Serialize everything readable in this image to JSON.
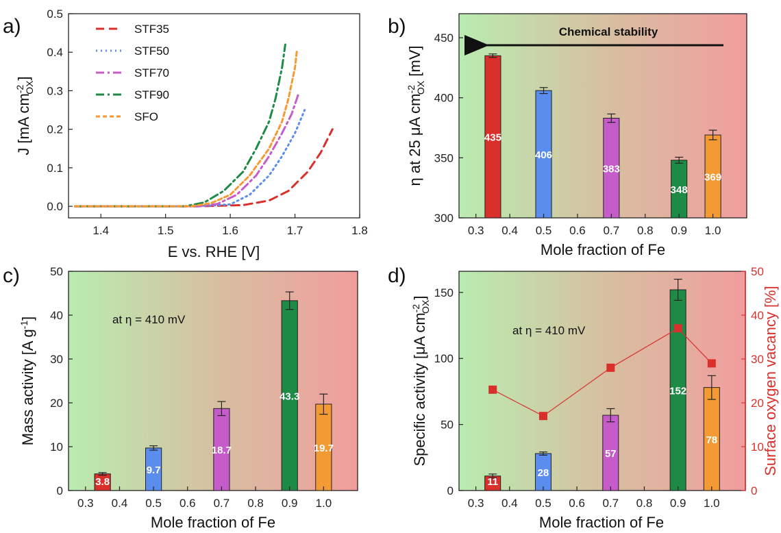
{
  "chart_data": [
    {
      "panel": "a)",
      "type": "line",
      "xlabel": "E vs. RHE [V]",
      "ylabel": "J [mA cm",
      "ylabel_sup": "-2",
      "ylabel_sub": "OX",
      "ylabel_end": "]",
      "xlim": [
        1.35,
        1.8
      ],
      "ylim": [
        -0.03,
        0.5
      ],
      "xticks": [
        1.4,
        1.5,
        1.6,
        1.7,
        1.8
      ],
      "yticks": [
        0.0,
        0.1,
        0.2,
        0.3,
        0.4,
        0.5
      ],
      "grid": false,
      "legend_position": "top-left",
      "series": [
        {
          "name": "STF35",
          "color": "#d9302c",
          "dash": "dash",
          "x": [
            1.36,
            1.45,
            1.55,
            1.62,
            1.66,
            1.69,
            1.72,
            1.74,
            1.758
          ],
          "y": [
            0,
            0,
            0,
            0.003,
            0.015,
            0.04,
            0.09,
            0.14,
            0.2
          ]
        },
        {
          "name": "STF50",
          "color": "#5b8def",
          "dash": "dot",
          "x": [
            1.36,
            1.45,
            1.55,
            1.6,
            1.63,
            1.66,
            1.68,
            1.7,
            1.715
          ],
          "y": [
            0,
            0,
            0,
            0.005,
            0.03,
            0.08,
            0.13,
            0.19,
            0.25
          ]
        },
        {
          "name": "STF70",
          "color": "#c55cc9",
          "dash": "dashdot",
          "x": [
            1.36,
            1.45,
            1.55,
            1.58,
            1.61,
            1.64,
            1.66,
            1.68,
            1.695,
            1.705
          ],
          "y": [
            0,
            0,
            0,
            0.006,
            0.03,
            0.08,
            0.13,
            0.19,
            0.24,
            0.29
          ]
        },
        {
          "name": "STF90",
          "color": "#1d8a45",
          "dash": "dashdot",
          "x": [
            1.36,
            1.45,
            1.53,
            1.56,
            1.59,
            1.62,
            1.64,
            1.66,
            1.67,
            1.68,
            1.685
          ],
          "y": [
            0,
            0,
            0,
            0.01,
            0.04,
            0.09,
            0.15,
            0.22,
            0.28,
            0.36,
            0.42
          ]
        },
        {
          "name": "SFO",
          "color": "#f39a34",
          "dash": "shortdash",
          "x": [
            1.36,
            1.45,
            1.54,
            1.57,
            1.6,
            1.63,
            1.66,
            1.68,
            1.69,
            1.7,
            1.703
          ],
          "y": [
            0,
            0,
            0,
            0.008,
            0.03,
            0.08,
            0.15,
            0.22,
            0.28,
            0.36,
            0.405
          ]
        }
      ]
    },
    {
      "panel": "b)",
      "type": "bar",
      "xlabel": "Mole fraction of Fe",
      "ylabel_pre": "η at 25 μA cm",
      "ylabel_sup": "-2",
      "ylabel_sub": "OX",
      "ylabel_end": " [mV]",
      "xlim": [
        0.25,
        1.1
      ],
      "ylim": [
        300,
        470
      ],
      "xticks": [
        0.3,
        0.4,
        0.5,
        0.6,
        0.7,
        0.8,
        0.9,
        1.0
      ],
      "yticks": [
        300,
        350,
        400,
        450
      ],
      "arrow_label": "Chemical stability",
      "x": [
        0.35,
        0.5,
        0.7,
        0.9,
        1.0
      ],
      "values": [
        435,
        406,
        383,
        348,
        369
      ],
      "errors": [
        1.5,
        2.5,
        3.5,
        2.5,
        4
      ],
      "labels": [
        "435",
        "406",
        "383",
        "348",
        "369"
      ],
      "colors": [
        "#d9302c",
        "#5b8def",
        "#c55cc9",
        "#1d8a45",
        "#f39a34"
      ]
    },
    {
      "panel": "c)",
      "type": "bar",
      "xlabel": "Mole fraction of Fe",
      "ylabel": "Mass activity [A g",
      "ylabel_sup": "-1",
      "ylabel_end": "]",
      "xlim": [
        0.25,
        1.1
      ],
      "ylim": [
        0,
        50
      ],
      "xticks": [
        0.3,
        0.4,
        0.5,
        0.6,
        0.7,
        0.8,
        0.9,
        1.0
      ],
      "yticks": [
        0,
        10,
        20,
        30,
        40,
        50
      ],
      "annotation": "at η = 410 mV",
      "x": [
        0.35,
        0.5,
        0.7,
        0.9,
        1.0
      ],
      "values": [
        3.8,
        9.7,
        18.7,
        43.3,
        19.7
      ],
      "errors": [
        0.3,
        0.5,
        1.6,
        2.0,
        2.3
      ],
      "labels": [
        "3.8",
        "9.7",
        "18.7",
        "43.3",
        "19.7"
      ],
      "colors": [
        "#d9302c",
        "#5b8def",
        "#c55cc9",
        "#1d8a45",
        "#f39a34"
      ]
    },
    {
      "panel": "d)",
      "type": "bar",
      "xlabel": "Mole fraction of Fe",
      "ylabel_pre": "Specific activity [μA cm",
      "ylabel_sup": "-2",
      "ylabel_sub": "OX",
      "ylabel_end": "]",
      "ylabel2": "Surface oxygen vacancy [%]",
      "xlim": [
        0.25,
        1.1
      ],
      "ylim": [
        0,
        166
      ],
      "ylim2": [
        0,
        50
      ],
      "xticks": [
        0.3,
        0.4,
        0.5,
        0.6,
        0.7,
        0.8,
        0.9,
        1.0
      ],
      "yticks": [
        0,
        50,
        100,
        150
      ],
      "yticks2": [
        0,
        10,
        20,
        30,
        40,
        50
      ],
      "annotation": "at η = 410 mV",
      "x": [
        0.35,
        0.5,
        0.7,
        0.9,
        1.0
      ],
      "values": [
        11,
        28,
        57,
        152,
        78
      ],
      "errors": [
        1.5,
        1.2,
        5,
        8,
        9
      ],
      "labels": [
        "11",
        "28",
        "57",
        "152",
        "78"
      ],
      "colors": [
        "#d9302c",
        "#5b8def",
        "#c55cc9",
        "#1d8a45",
        "#f39a34"
      ],
      "vacancy": [
        23,
        17,
        28,
        37,
        29
      ],
      "vacancy_color": "#d9302c"
    }
  ]
}
